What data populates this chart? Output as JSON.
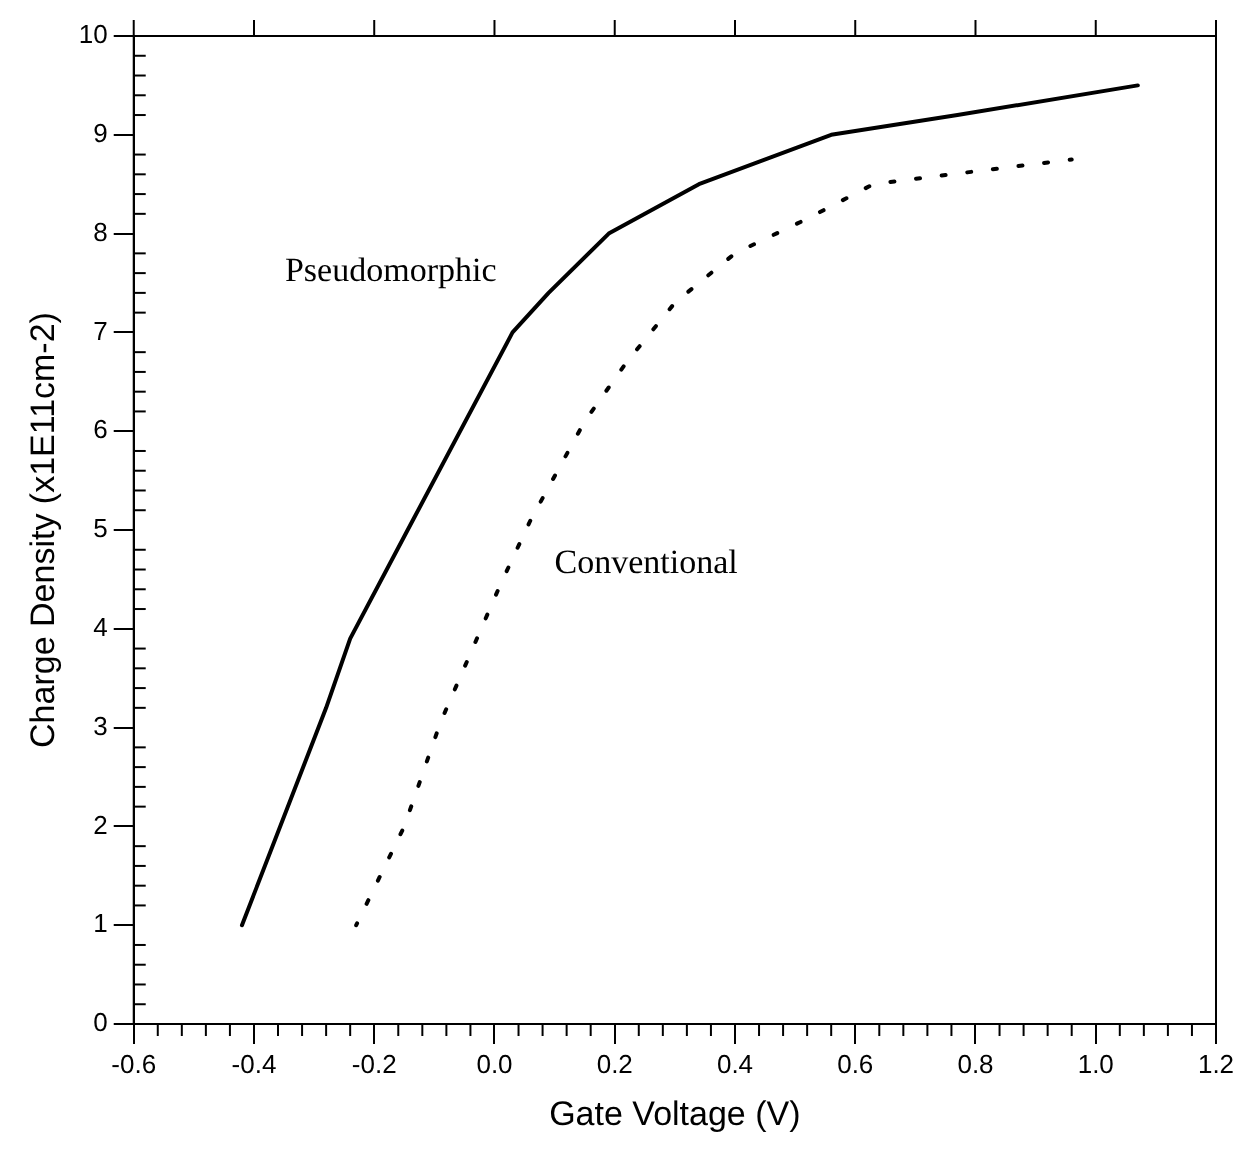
{
  "chart_data": {
    "type": "line",
    "xlabel": "Gate Voltage (V)",
    "ylabel": "Charge Density (x1E11cm-2)",
    "xlim": [
      -0.6,
      1.2
    ],
    "xticks": [
      {
        "value": -0.6,
        "label": "-0.6"
      },
      {
        "value": -0.4,
        "label": "-0.4"
      },
      {
        "value": -0.2,
        "label": "-0.2"
      },
      {
        "value": 0,
        "label": "0.0"
      },
      {
        "value": 0.2,
        "label": "0.2"
      },
      {
        "value": 0.4,
        "label": "0.4"
      },
      {
        "value": 0.6,
        "label": "0.6"
      },
      {
        "value": 0.8,
        "label": "0.8"
      },
      {
        "value": 1.0,
        "label": "1.0"
      },
      {
        "value": 1.2,
        "label": "1.2"
      }
    ],
    "ylim": [
      0,
      10
    ],
    "yticks": [
      0,
      1,
      2,
      3,
      4,
      5,
      6,
      7,
      8,
      9,
      10
    ],
    "grid": false,
    "legend": false,
    "marker": "none",
    "series": [
      {
        "name": "Pseudomorphic",
        "color": "#000000",
        "line_style": "solid",
        "x": [
          -0.42,
          -0.28,
          -0.24,
          -0.14,
          0.03,
          0.09,
          0.19,
          0.34,
          0.56,
          0.77,
          1.07
        ],
        "values": [
          1,
          3.2,
          3.9,
          5.05,
          7,
          7.4,
          8,
          8.5,
          9,
          9.2,
          9.5
        ]
      },
      {
        "name": "Conventional",
        "color": "#000000",
        "line_style": "dotted",
        "x": [
          -0.23,
          -0.15,
          -0.09,
          -0.04,
          0.01,
          0.06,
          0.15,
          0.22,
          0.3,
          0.4,
          0.52,
          0.63,
          0.76,
          0.96
        ],
        "values": [
          1,
          2,
          3.05,
          3.75,
          4.45,
          5.1,
          6.1,
          6.7,
          7.3,
          7.8,
          8.15,
          8.5,
          8.6,
          8.75
        ]
      }
    ]
  }
}
